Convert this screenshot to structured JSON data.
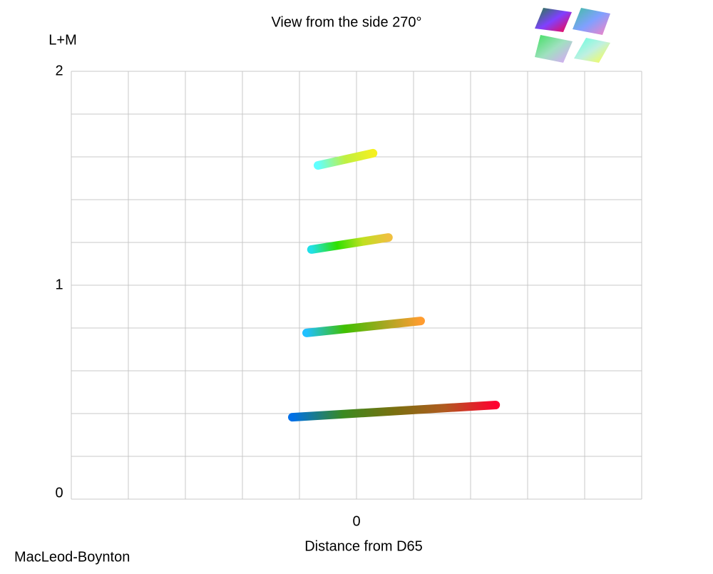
{
  "chart_data": {
    "type": "line",
    "title": "View from the side 270°",
    "y_label": "L+M",
    "x_label": "Distance from D65",
    "space_label": "MacLeod-Boynton",
    "xlim": [
      -5,
      5
    ],
    "ylim": [
      0,
      2
    ],
    "xticks": [
      0
    ],
    "yticks": [
      0,
      1,
      2
    ],
    "x_grid": [
      -5,
      -4,
      -3,
      -2,
      -1,
      0,
      1,
      2,
      3,
      4,
      5
    ],
    "y_grid": [
      0,
      0.2,
      0.4,
      0.6,
      0.8,
      1,
      1.2,
      1.4,
      1.6,
      1.8,
      2
    ],
    "series": [
      {
        "x": [
          -1.125,
          2.44
        ],
        "values": [
          0.383,
          0.44
        ],
        "colors": [
          "#0070e8",
          "#3a8a20",
          "#7a7010",
          "#b05a20",
          "#ff0030"
        ]
      },
      {
        "x": [
          -0.875,
          1.125
        ],
        "values": [
          0.777,
          0.833
        ],
        "colors": [
          "#20c0ff",
          "#40c000",
          "#a0a820",
          "#ff9c30"
        ]
      },
      {
        "x": [
          -0.79,
          0.56
        ],
        "values": [
          1.167,
          1.223
        ],
        "colors": [
          "#20e0e8",
          "#30e000",
          "#c0e020",
          "#f0c040"
        ]
      },
      {
        "x": [
          -0.675,
          0.29
        ],
        "values": [
          1.56,
          1.617
        ],
        "colors": [
          "#60ffff",
          "#c0f040",
          "#f4f020"
        ]
      }
    ]
  }
}
